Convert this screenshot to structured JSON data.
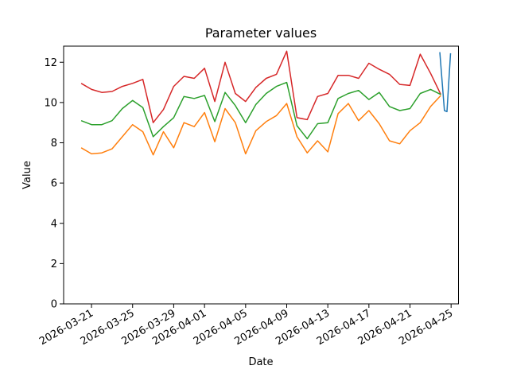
{
  "figure": {
    "title": "Parameter values",
    "xlabel": "Date",
    "ylabel": "Value",
    "background": "#ffffff",
    "spine_color": "#000000"
  },
  "chart_data": {
    "type": "line",
    "title": "Parameter values",
    "xlabel": "Date",
    "ylabel": "Value",
    "grid": false,
    "legend": null,
    "ylim": [
      0,
      12.8
    ],
    "xlim_day_offsets": [
      -1.71,
      36.72
    ],
    "yticks": [
      0,
      2,
      4,
      6,
      8,
      10,
      12
    ],
    "xticks": [
      {
        "day_offset": 1,
        "label": "2026-03-21"
      },
      {
        "day_offset": 5,
        "label": "2026-03-25"
      },
      {
        "day_offset": 9,
        "label": "2026-03-29"
      },
      {
        "day_offset": 12,
        "label": "2026-04-01"
      },
      {
        "day_offset": 16,
        "label": "2026-04-05"
      },
      {
        "day_offset": 20,
        "label": "2026-04-09"
      },
      {
        "day_offset": 24,
        "label": "2026-04-13"
      },
      {
        "day_offset": 28,
        "label": "2026-04-17"
      },
      {
        "day_offset": 32,
        "label": "2026-04-21"
      },
      {
        "day_offset": 36,
        "label": "2026-04-25"
      }
    ],
    "x_dates": [
      "2026-03-20",
      "2026-03-21",
      "2026-03-22",
      "2026-03-23",
      "2026-03-24",
      "2026-03-25",
      "2026-03-26",
      "2026-03-27",
      "2026-03-28",
      "2026-03-29",
      "2026-03-30",
      "2026-03-31",
      "2026-04-01",
      "2026-04-02",
      "2026-04-03",
      "2026-04-04",
      "2026-04-05",
      "2026-04-06",
      "2026-04-07",
      "2026-04-08",
      "2026-04-09",
      "2026-04-10",
      "2026-04-11",
      "2026-04-12",
      "2026-04-13",
      "2026-04-14",
      "2026-04-15",
      "2026-04-16",
      "2026-04-17",
      "2026-04-18",
      "2026-04-19",
      "2026-04-20",
      "2026-04-21",
      "2026-04-22",
      "2026-04-23",
      "2026-04-24"
    ],
    "series": [
      {
        "name": "red",
        "color": "#d62728",
        "values": [
          10.95,
          10.65,
          10.5,
          10.55,
          10.8,
          10.95,
          11.15,
          9.0,
          9.65,
          10.8,
          11.3,
          11.2,
          11.7,
          10.05,
          12.0,
          10.45,
          10.05,
          10.75,
          11.2,
          11.4,
          12.55,
          9.25,
          9.15,
          10.3,
          10.45,
          11.35,
          11.35,
          11.2,
          11.95,
          11.65,
          11.4,
          10.9,
          10.85,
          12.4,
          11.45,
          10.4
        ]
      },
      {
        "name": "green",
        "color": "#2ca02c",
        "values": [
          9.1,
          8.9,
          8.9,
          9.1,
          9.7,
          10.1,
          9.75,
          8.3,
          8.8,
          9.25,
          10.3,
          10.2,
          10.35,
          9.05,
          10.5,
          9.85,
          9.0,
          9.9,
          10.45,
          10.8,
          11.0,
          8.85,
          8.2,
          8.95,
          9.0,
          10.2,
          10.45,
          10.6,
          10.15,
          10.5,
          9.8,
          9.6,
          9.7,
          10.45,
          10.65,
          10.4
        ]
      },
      {
        "name": "orange",
        "color": "#ff7f0e",
        "values": [
          7.75,
          7.45,
          7.5,
          7.7,
          8.3,
          8.9,
          8.55,
          7.4,
          8.55,
          7.75,
          9.0,
          8.8,
          9.5,
          8.05,
          9.7,
          9.0,
          7.45,
          8.6,
          9.05,
          9.35,
          9.95,
          8.3,
          7.5,
          8.1,
          7.55,
          9.45,
          9.95,
          9.1,
          9.6,
          8.95,
          8.1,
          7.95,
          8.6,
          9.0,
          9.8,
          10.35
        ]
      },
      {
        "name": "blue",
        "color": "#1f77b4",
        "x_day_offsets": [
          34.9,
          35.35,
          35.6,
          35.95
        ],
        "values": [
          12.5,
          9.6,
          9.55,
          12.45
        ]
      }
    ]
  }
}
